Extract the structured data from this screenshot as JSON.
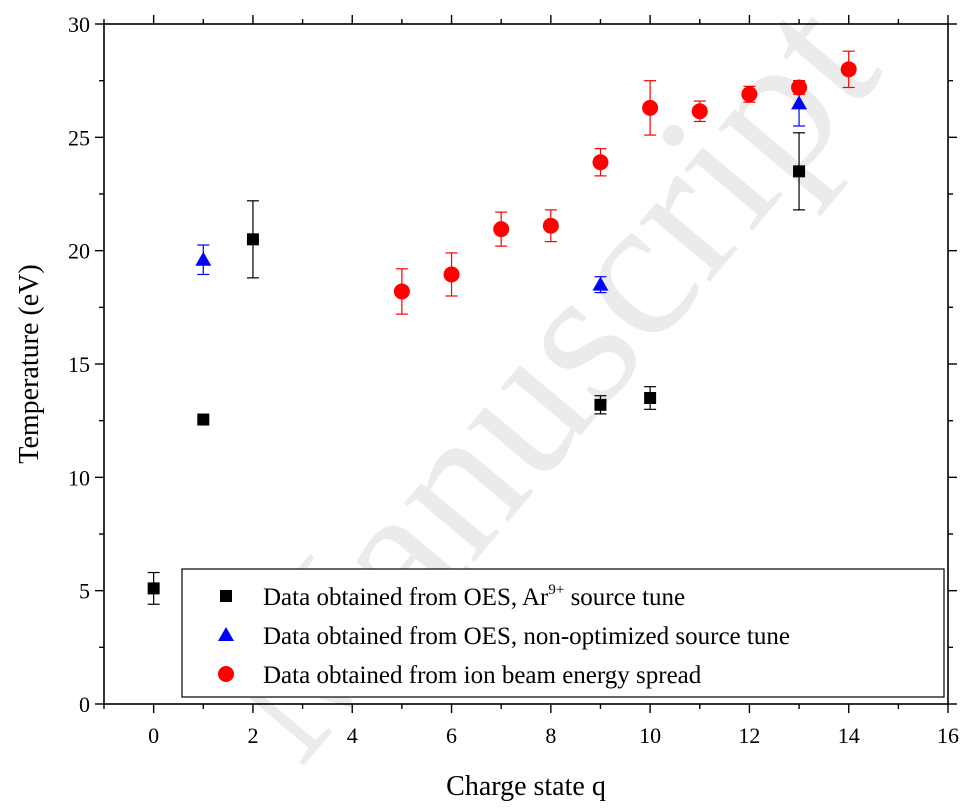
{
  "chart_data": {
    "type": "scatter",
    "title": "",
    "xlabel": "Charge state q",
    "ylabel": "Temperature (eV)",
    "xlim": [
      -1,
      16
    ],
    "ylim": [
      0,
      30
    ],
    "x_ticks": [
      0,
      2,
      4,
      6,
      8,
      10,
      12,
      14,
      16
    ],
    "y_ticks": [
      0,
      5,
      10,
      15,
      20,
      25,
      30
    ],
    "grid": false,
    "legend_position": "bottom-center",
    "series": [
      {
        "name": "Data obtained from OES, Ar9+ source tune",
        "legend_prefix": "Data obtained from OES, Ar",
        "legend_sup": "9+",
        "legend_suffix": " source tune",
        "marker": "square",
        "color": "#000000",
        "points": [
          {
            "x": 0,
            "y": 5.1,
            "err": 0.7
          },
          {
            "x": 1,
            "y": 12.55,
            "err": 0
          },
          {
            "x": 2,
            "y": 20.5,
            "err": 1.7
          },
          {
            "x": 9,
            "y": 13.2,
            "err": 0.4
          },
          {
            "x": 10,
            "y": 13.5,
            "err": 0.5
          },
          {
            "x": 13,
            "y": 23.5,
            "err": 1.7
          }
        ]
      },
      {
        "name": "Data obtained from OES, non-optimized source tune",
        "marker": "triangle",
        "color": "#0000ff",
        "points": [
          {
            "x": 1,
            "y": 19.6,
            "err": 0.65
          },
          {
            "x": 9,
            "y": 18.5,
            "err": 0.35
          },
          {
            "x": 13,
            "y": 26.5,
            "err": 1.0
          }
        ]
      },
      {
        "name": "Data obtained from ion beam energy spread",
        "marker": "circle",
        "color": "#ff0000",
        "points": [
          {
            "x": 5,
            "y": 18.2,
            "err": 1.0
          },
          {
            "x": 6,
            "y": 18.95,
            "err": 0.95
          },
          {
            "x": 7,
            "y": 20.95,
            "err": 0.75
          },
          {
            "x": 8,
            "y": 21.1,
            "err": 0.7
          },
          {
            "x": 9,
            "y": 23.9,
            "err": 0.6
          },
          {
            "x": 10,
            "y": 26.3,
            "err": 1.2
          },
          {
            "x": 11,
            "y": 26.15,
            "err": 0.45
          },
          {
            "x": 12,
            "y": 26.9,
            "err": 0.35
          },
          {
            "x": 13,
            "y": 27.2,
            "err": 0.3
          },
          {
            "x": 14,
            "y": 28.0,
            "err": 0.8
          }
        ]
      }
    ]
  },
  "watermark": "Manuscript"
}
